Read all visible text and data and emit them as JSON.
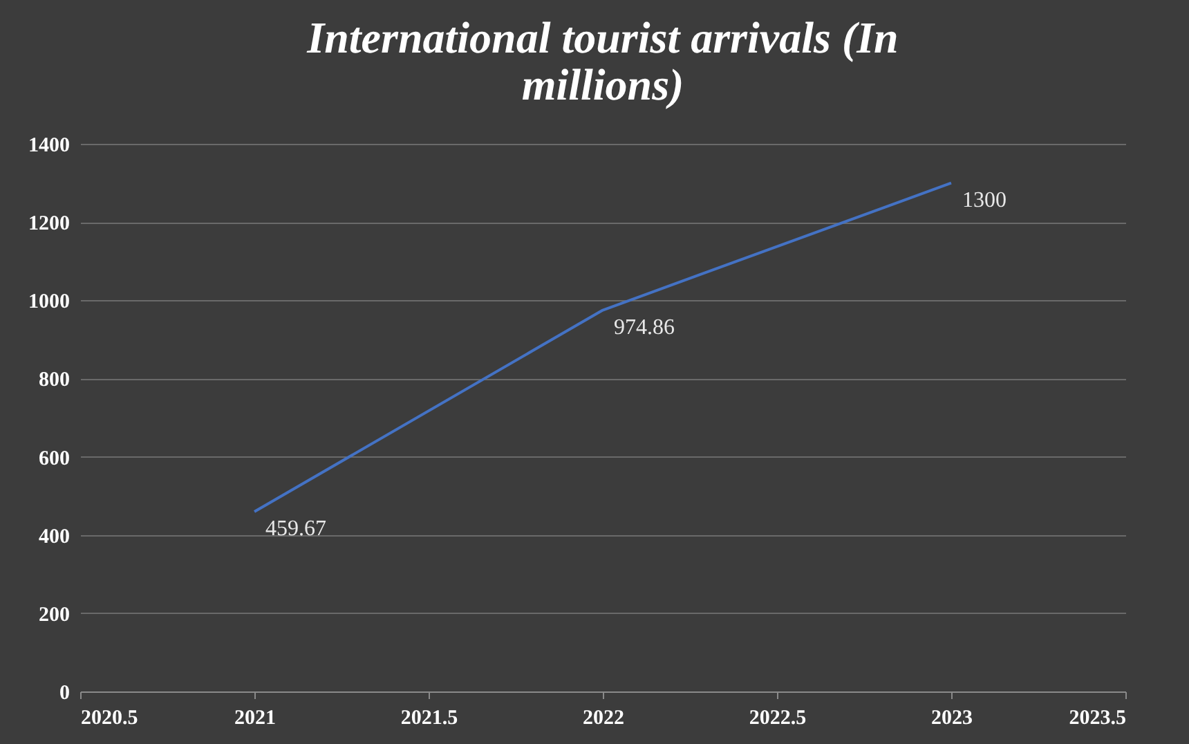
{
  "chart_data": {
    "type": "line",
    "title": "International tourist arrivals (In millions)",
    "x": [
      2021,
      2022,
      2023
    ],
    "series": [
      {
        "color": "#4472c4",
        "values": [
          459.67,
          974.86,
          1300
        ]
      }
    ],
    "xlim": [
      2020.5,
      2023.5
    ],
    "xticks": [
      2020.5,
      2021,
      2021.5,
      2022,
      2022.5,
      2023,
      2023.5
    ],
    "ylim": [
      0,
      1400
    ],
    "yticks": [
      0,
      200,
      400,
      600,
      800,
      1000,
      1200,
      1400
    ],
    "grid": "y",
    "data_labels": true,
    "marker": "none",
    "line_style": "solid"
  }
}
